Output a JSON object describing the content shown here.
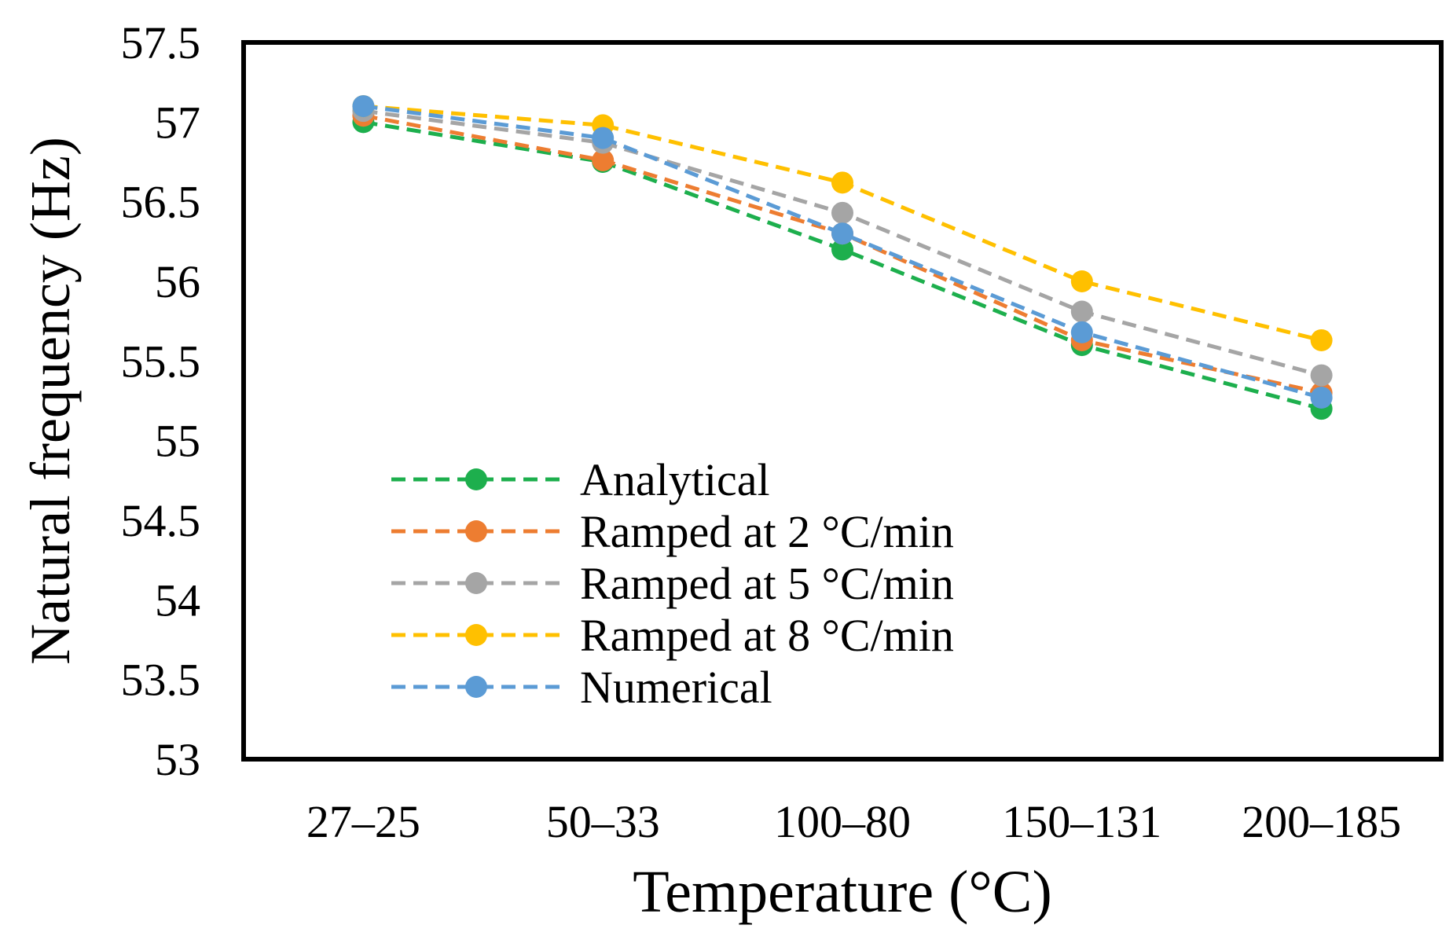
{
  "chart_data": {
    "type": "line",
    "title": "",
    "xlabel": "Temperature (°C)",
    "ylabel": "Natural frequency (Hz)",
    "categories": [
      "27–25",
      "50–33",
      "100–80",
      "150–131",
      "200–185"
    ],
    "ylim": [
      53,
      57.5
    ],
    "yticks": [
      "53",
      "53.5",
      "54",
      "54.5",
      "55",
      "55.5",
      "56",
      "56.5",
      "57",
      "57.5"
    ],
    "grid": false,
    "legend_position": "bottom-left",
    "series": [
      {
        "name": "Analytical",
        "color": "#1DAF4D",
        "values": [
          57.0,
          56.75,
          56.2,
          55.6,
          55.2
        ]
      },
      {
        "name": "Ramped at 2 °C/min",
        "color": "#ED7D31",
        "values": [
          57.04,
          56.76,
          56.3,
          55.63,
          55.3
        ]
      },
      {
        "name": "Ramped at 5 °C/min",
        "color": "#A5A5A5",
        "values": [
          57.07,
          56.87,
          56.43,
          55.81,
          55.41
        ]
      },
      {
        "name": "Ramped at 8 °C/min",
        "color": "#FFC000",
        "values": [
          57.1,
          56.98,
          56.62,
          56.0,
          55.63
        ]
      },
      {
        "name": "Numerical",
        "color": "#5B9BD5",
        "values": [
          57.1,
          56.9,
          56.3,
          55.68,
          55.27
        ]
      }
    ]
  }
}
